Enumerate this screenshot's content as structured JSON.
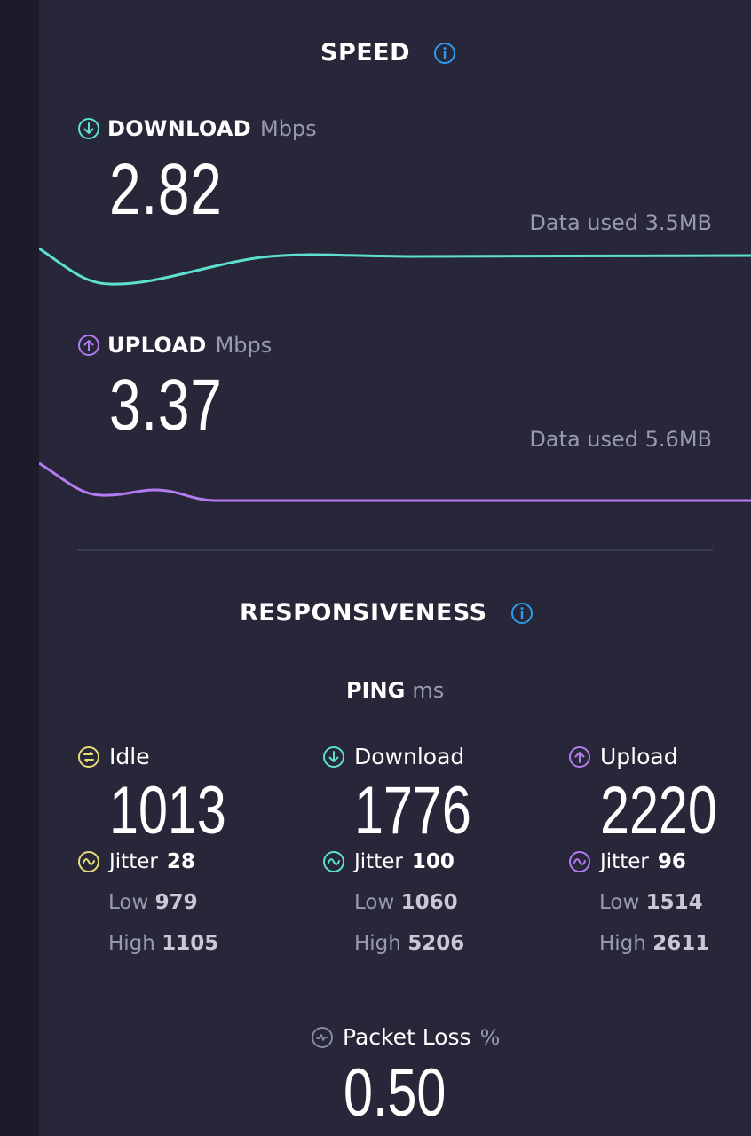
{
  "speed": {
    "title": "SPEED",
    "download": {
      "label": "DOWNLOAD",
      "unit": "Mbps",
      "value": "2.82",
      "data_used": "Data used 3.5MB"
    },
    "upload": {
      "label": "UPLOAD",
      "unit": "Mbps",
      "value": "3.37",
      "data_used": "Data used 5.6MB"
    }
  },
  "responsiveness": {
    "title": "RESPONSIVENESS",
    "ping": {
      "label": "PING",
      "unit": "ms"
    },
    "columns": [
      {
        "label": "Idle",
        "value": "1013",
        "jitter_label": "Jitter",
        "jitter": "28",
        "low_label": "Low",
        "low": "979",
        "high_label": "High",
        "high": "1105"
      },
      {
        "label": "Download",
        "value": "1776",
        "jitter_label": "Jitter",
        "jitter": "100",
        "low_label": "Low",
        "low": "1060",
        "high_label": "High",
        "high": "5206"
      },
      {
        "label": "Upload",
        "value": "2220",
        "jitter_label": "Jitter",
        "jitter": "96",
        "low_label": "Low",
        "low": "1514",
        "high_label": "High",
        "high": "2611"
      }
    ],
    "packet_loss": {
      "label": "Packet Loss",
      "unit": "%",
      "value": "0.50"
    }
  },
  "colors": {
    "background": "#272739",
    "download_accent": "#5de0d0",
    "upload_accent": "#b57bf0",
    "idle_accent": "#e8dc78",
    "info_blue": "#2d9cf0"
  },
  "icons": {
    "info": "info-icon",
    "download": "download-arrow-icon",
    "upload": "upload-arrow-icon",
    "idle": "idle-icon",
    "jitter": "jitter-wave-icon",
    "packet_loss": "packet-loss-icon"
  }
}
